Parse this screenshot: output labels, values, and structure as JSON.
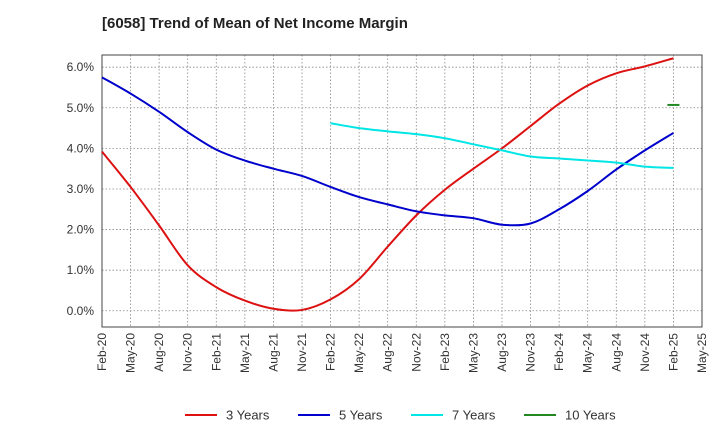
{
  "chart_data": {
    "type": "line",
    "title": "[6058]  Trend of Mean of Net Income Margin",
    "xlabel": "",
    "ylabel": "",
    "x_ticks": [
      "Feb-20",
      "May-20",
      "Aug-20",
      "Nov-20",
      "Feb-21",
      "May-21",
      "Aug-21",
      "Nov-21",
      "Feb-22",
      "May-22",
      "Aug-22",
      "Nov-22",
      "Feb-23",
      "May-23",
      "Aug-23",
      "Nov-23",
      "Feb-24",
      "May-24",
      "Aug-24",
      "Nov-24",
      "Feb-25",
      "May-25"
    ],
    "y_ticks": [
      "0.0%",
      "1.0%",
      "2.0%",
      "3.0%",
      "4.0%",
      "5.0%",
      "6.0%"
    ],
    "ylim": [
      -0.4,
      6.3
    ],
    "y_unit": "%",
    "grid": true,
    "legend_position": "bottom",
    "series": [
      {
        "name": "3 Years",
        "color": "#dd1111",
        "x": [
          "Feb-20",
          "May-20",
          "Aug-20",
          "Nov-20",
          "Feb-21",
          "May-21",
          "Aug-21",
          "Nov-21",
          "Feb-22",
          "May-22",
          "Aug-22",
          "Nov-22",
          "Feb-23",
          "May-23",
          "Aug-23",
          "Nov-23",
          "Feb-24",
          "May-24",
          "Aug-24",
          "Nov-24",
          "Feb-25"
        ],
        "values": [
          3.92,
          3.05,
          2.1,
          1.12,
          0.58,
          0.25,
          0.05,
          0.02,
          0.28,
          0.78,
          1.58,
          2.35,
          2.98,
          3.5,
          4.0,
          4.55,
          5.1,
          5.55,
          5.85,
          6.02,
          6.22
        ]
      },
      {
        "name": "5 Years",
        "color": "#0000cc",
        "x": [
          "Feb-20",
          "May-20",
          "Aug-20",
          "Nov-20",
          "Feb-21",
          "May-21",
          "Aug-21",
          "Nov-21",
          "Feb-22",
          "May-22",
          "Aug-22",
          "Nov-22",
          "Feb-23",
          "May-23",
          "Aug-23",
          "Nov-23",
          "Feb-24",
          "May-24",
          "Aug-24",
          "Nov-24",
          "Feb-25"
        ],
        "values": [
          5.75,
          5.35,
          4.9,
          4.4,
          3.97,
          3.7,
          3.5,
          3.32,
          3.05,
          2.8,
          2.62,
          2.45,
          2.35,
          2.28,
          2.12,
          2.15,
          2.5,
          2.95,
          3.48,
          3.95,
          4.38
        ]
      },
      {
        "name": "7 Years",
        "color": "#00e5e5",
        "x": [
          "Feb-22",
          "May-22",
          "Aug-22",
          "Nov-22",
          "Feb-23",
          "May-23",
          "Aug-23",
          "Nov-23",
          "Feb-24",
          "May-24",
          "Aug-24",
          "Nov-24",
          "Feb-25"
        ],
        "values": [
          4.62,
          4.5,
          4.42,
          4.35,
          4.25,
          4.1,
          3.95,
          3.8,
          3.75,
          3.7,
          3.65,
          3.55,
          3.52
        ]
      },
      {
        "name": "10 Years",
        "color": "#228822",
        "x": [
          "Feb-25"
        ],
        "values": [
          5.07
        ]
      }
    ]
  }
}
